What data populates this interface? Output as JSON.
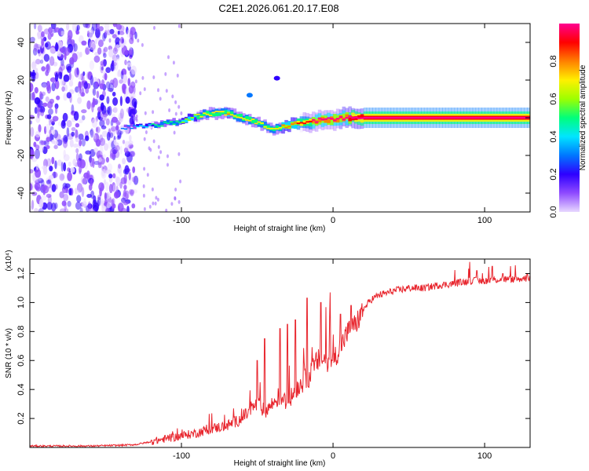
{
  "page_title": "C2E1.2026.061.20.17.E08",
  "chart_data": [
    {
      "type": "heatmap",
      "title": "C2E1.2026.061.20.17.E08",
      "xlabel": "Height of straight line (km)",
      "ylabel": "Frequency (Hz)",
      "xlim": [
        -200,
        130
      ],
      "ylim": [
        -50,
        50
      ],
      "x_ticks": [
        -100,
        0,
        100
      ],
      "x_tick_labels": [
        "-100",
        "0",
        "100"
      ],
      "y_ticks": [
        -40,
        -20,
        0,
        20,
        40
      ],
      "y_tick_labels": [
        "-40",
        "-20",
        "0",
        "20",
        "40"
      ],
      "colorbar": {
        "label": "Normalized spectral amplitude",
        "range": [
          0,
          1
        ],
        "ticks": [
          0.0,
          0.2,
          0.4,
          0.6,
          0.8
        ],
        "tick_labels": [
          "0.0",
          "0.2",
          "0.4",
          "0.6",
          "0.8"
        ],
        "colormap": [
          "#e8d8ff",
          "#8f4bff",
          "#2e00ff",
          "#0077ff",
          "#00e5ff",
          "#00ff7b",
          "#9dff00",
          "#fff000",
          "#ff8000",
          "#ff0000",
          "#ff0090"
        ]
      },
      "ridge_x": [
        -140,
        -130,
        -120,
        -110,
        -100,
        -95,
        -90,
        -85,
        -80,
        -75,
        -70,
        -65,
        -60,
        -55,
        -50,
        -45,
        -40,
        -35,
        -30,
        -25,
        -20,
        -15,
        -10,
        -5,
        0,
        5,
        10,
        20,
        40,
        60,
        80,
        100,
        120,
        130
      ],
      "ridge_freq": [
        -5,
        -5,
        -4,
        -3,
        -2,
        0,
        1,
        2,
        2,
        3,
        2,
        1,
        0,
        -1,
        -3,
        -5,
        -6,
        -5,
        -4,
        -3,
        -3,
        -2,
        -1,
        -1,
        -1,
        0,
        0,
        0,
        0,
        0,
        0,
        0,
        0,
        0
      ],
      "ridge_amplitude": [
        0.15,
        0.25,
        0.35,
        0.4,
        0.45,
        0.5,
        0.55,
        0.55,
        0.6,
        0.6,
        0.65,
        0.6,
        0.6,
        0.55,
        0.55,
        0.55,
        0.6,
        0.65,
        0.7,
        0.75,
        0.8,
        0.85,
        0.85,
        0.85,
        0.88,
        0.92,
        0.95,
        1.0,
        1.0,
        1.0,
        1.0,
        1.0,
        1.0,
        1.0
      ],
      "noise_region_km": [
        -200,
        -130
      ]
    },
    {
      "type": "line",
      "xlabel": "Height of straight line (km)",
      "ylabel": "SNR (10 * v/v)",
      "y_multiplier": "(x10⁴)",
      "xlim": [
        -200,
        130
      ],
      "ylim": [
        0,
        1.3
      ],
      "x_ticks": [
        -100,
        0,
        100
      ],
      "x_tick_labels": [
        "-100",
        "0",
        "100"
      ],
      "y_ticks": [
        0.2,
        0.4,
        0.6,
        0.8,
        1.0,
        1.2
      ],
      "y_tick_labels": [
        "0.2",
        "0.4",
        "0.6",
        "0.8",
        "1.0",
        "1.2"
      ],
      "series": [
        {
          "name": "SNR",
          "color": "#e8252d",
          "x": [
            -200,
            -180,
            -160,
            -140,
            -130,
            -120,
            -110,
            -100,
            -90,
            -80,
            -70,
            -60,
            -55,
            -50,
            -45,
            -40,
            -35,
            -30,
            -25,
            -20,
            -15,
            -10,
            -5,
            0,
            5,
            10,
            15,
            20,
            25,
            30,
            40,
            50,
            60,
            70,
            80,
            90,
            100,
            110,
            120,
            130
          ],
          "y": [
            0.01,
            0.01,
            0.01,
            0.015,
            0.02,
            0.04,
            0.06,
            0.08,
            0.1,
            0.13,
            0.15,
            0.2,
            0.25,
            0.3,
            0.25,
            0.3,
            0.35,
            0.3,
            0.4,
            0.45,
            0.5,
            0.6,
            0.6,
            0.6,
            0.7,
            0.8,
            0.85,
            0.95,
            1.02,
            1.05,
            1.08,
            1.1,
            1.1,
            1.12,
            1.13,
            1.15,
            1.15,
            1.16,
            1.16,
            1.17
          ],
          "spikes": [
            {
              "x": -50,
              "y": 0.6
            },
            {
              "x": -45,
              "y": 0.75
            },
            {
              "x": -35,
              "y": 0.82
            },
            {
              "x": -30,
              "y": 0.85
            },
            {
              "x": -25,
              "y": 0.88
            },
            {
              "x": -17,
              "y": 1.03
            },
            {
              "x": -8,
              "y": 1.0
            },
            {
              "x": -2,
              "y": 0.9
            },
            {
              "x": 5,
              "y": 0.92
            },
            {
              "x": 12,
              "y": 0.98
            },
            {
              "x": 90,
              "y": 1.28
            },
            {
              "x": 95,
              "y": 1.22
            },
            {
              "x": 105,
              "y": 1.25
            },
            {
              "x": 112,
              "y": 1.2
            },
            {
              "x": 128,
              "y": 1.2
            }
          ]
        }
      ]
    }
  ]
}
